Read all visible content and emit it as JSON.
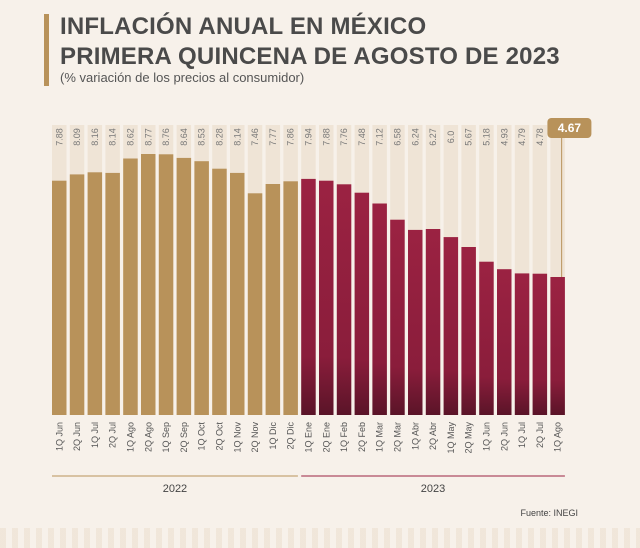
{
  "header": {
    "title_line1": "INFLACIÓN ANUAL EN MÉXICO",
    "title_line2": "PRIMERA QUINCENA DE AGOSTO DE 2023",
    "subtitle": "(% variación de los precios al consumidor)"
  },
  "footer": {
    "source": "Fuente: INEGI"
  },
  "colors": {
    "gold": "#b8925a",
    "wine": "#9b2242",
    "wine_dark": "#5a1428",
    "track": "#efe4d6",
    "highlight_bg": "#b8925a"
  },
  "chart_data": {
    "type": "bar",
    "title": "INFLACIÓN ANUAL EN MÉXICO PRIMERA QUINCENA DE AGOSTO DE 2023",
    "subtitle": "(% variación de los precios al consumidor)",
    "ylabel": "",
    "xlabel": "",
    "ylim": [
      0,
      9
    ],
    "grid": false,
    "categories": [
      "1Q Jun",
      "2Q Jun",
      "1Q Jul",
      "2Q Jul",
      "1Q Ago",
      "2Q Ago",
      "1Q Sep",
      "2Q Sep",
      "1Q Oct",
      "2Q Oct",
      "1Q Nov",
      "2Q Nov",
      "1Q Dic",
      "2Q Dic",
      "1Q Ene",
      "2Q Ene",
      "1Q Feb",
      "2Q Feb",
      "1Q Mar",
      "2Q Mar",
      "1Q Abr",
      "2Q Abr",
      "1Q May",
      "2Q May",
      "1Q Jun",
      "2Q Jun",
      "1Q Jul",
      "2Q Jul",
      "1Q Ago"
    ],
    "labels": [
      "7.88",
      "8.09",
      "8.16",
      "8.14",
      "8.62",
      "8.77",
      "8.76",
      "8.64",
      "8.53",
      "8.28",
      "8.14",
      "7.46",
      "7.77",
      "7.86",
      "7.94",
      "7.88",
      "7.76",
      "7.48",
      "7.12",
      "6.58",
      "6.24",
      "6.27",
      "6.0",
      "5.67",
      "5.18",
      "4.93",
      "4.79",
      "4.78",
      "4.67"
    ],
    "values": [
      7.88,
      8.09,
      8.16,
      8.14,
      8.62,
      8.77,
      8.76,
      8.64,
      8.53,
      8.28,
      8.14,
      7.46,
      7.77,
      7.86,
      7.94,
      7.88,
      7.76,
      7.48,
      7.12,
      6.58,
      6.24,
      6.27,
      6.0,
      5.67,
      5.18,
      4.93,
      4.79,
      4.78,
      4.67
    ],
    "groups": [
      {
        "name": "2022",
        "start": 0,
        "end": 13
      },
      {
        "name": "2023",
        "start": 14,
        "end": 28
      }
    ]
  }
}
